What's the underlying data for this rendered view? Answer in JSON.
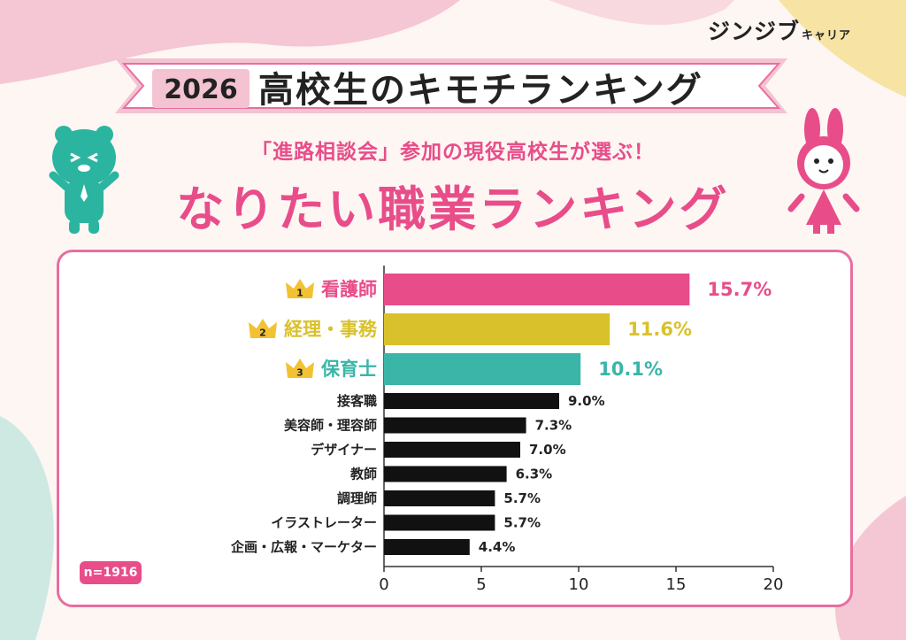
{
  "brand": {
    "name": "ジンジブ",
    "sub": "キャリア"
  },
  "banner": {
    "year": "2026",
    "title": "高校生のキモチランキング"
  },
  "subtitle": "「進路相談会」参加の現役高校生が選ぶ！",
  "main_title": "なりたい職業ランキング",
  "sample_note": "n=1916",
  "colors": {
    "pink": "#e84d8a",
    "yellow": "#d9c12b",
    "teal": "#3bb5a8",
    "black": "#111111"
  },
  "chart_data": {
    "type": "bar",
    "orientation": "horizontal",
    "categories": [
      "看護師",
      "経理・事務",
      "保育士",
      "接客職",
      "美容師・理容師",
      "デザイナー",
      "教師",
      "調理師",
      "イラストレーター",
      "企画・広報・マーケター"
    ],
    "values": [
      15.7,
      11.6,
      10.1,
      9.0,
      7.3,
      7.0,
      6.3,
      5.7,
      5.7,
      4.4
    ],
    "value_labels": [
      "15.7%",
      "11.6%",
      "10.1%",
      "9.0%",
      "7.3%",
      "7.0%",
      "6.3%",
      "5.7%",
      "5.7%",
      "4.4%"
    ],
    "ranks": [
      "1",
      "2",
      "3"
    ],
    "xlim": [
      0,
      20
    ],
    "xticks": [
      "0",
      "5",
      "10",
      "15",
      "20"
    ],
    "bar_colors": [
      "#e84d8a",
      "#d9c12b",
      "#3bb5a8",
      "#111111",
      "#111111",
      "#111111",
      "#111111",
      "#111111",
      "#111111",
      "#111111"
    ],
    "grid": false
  }
}
